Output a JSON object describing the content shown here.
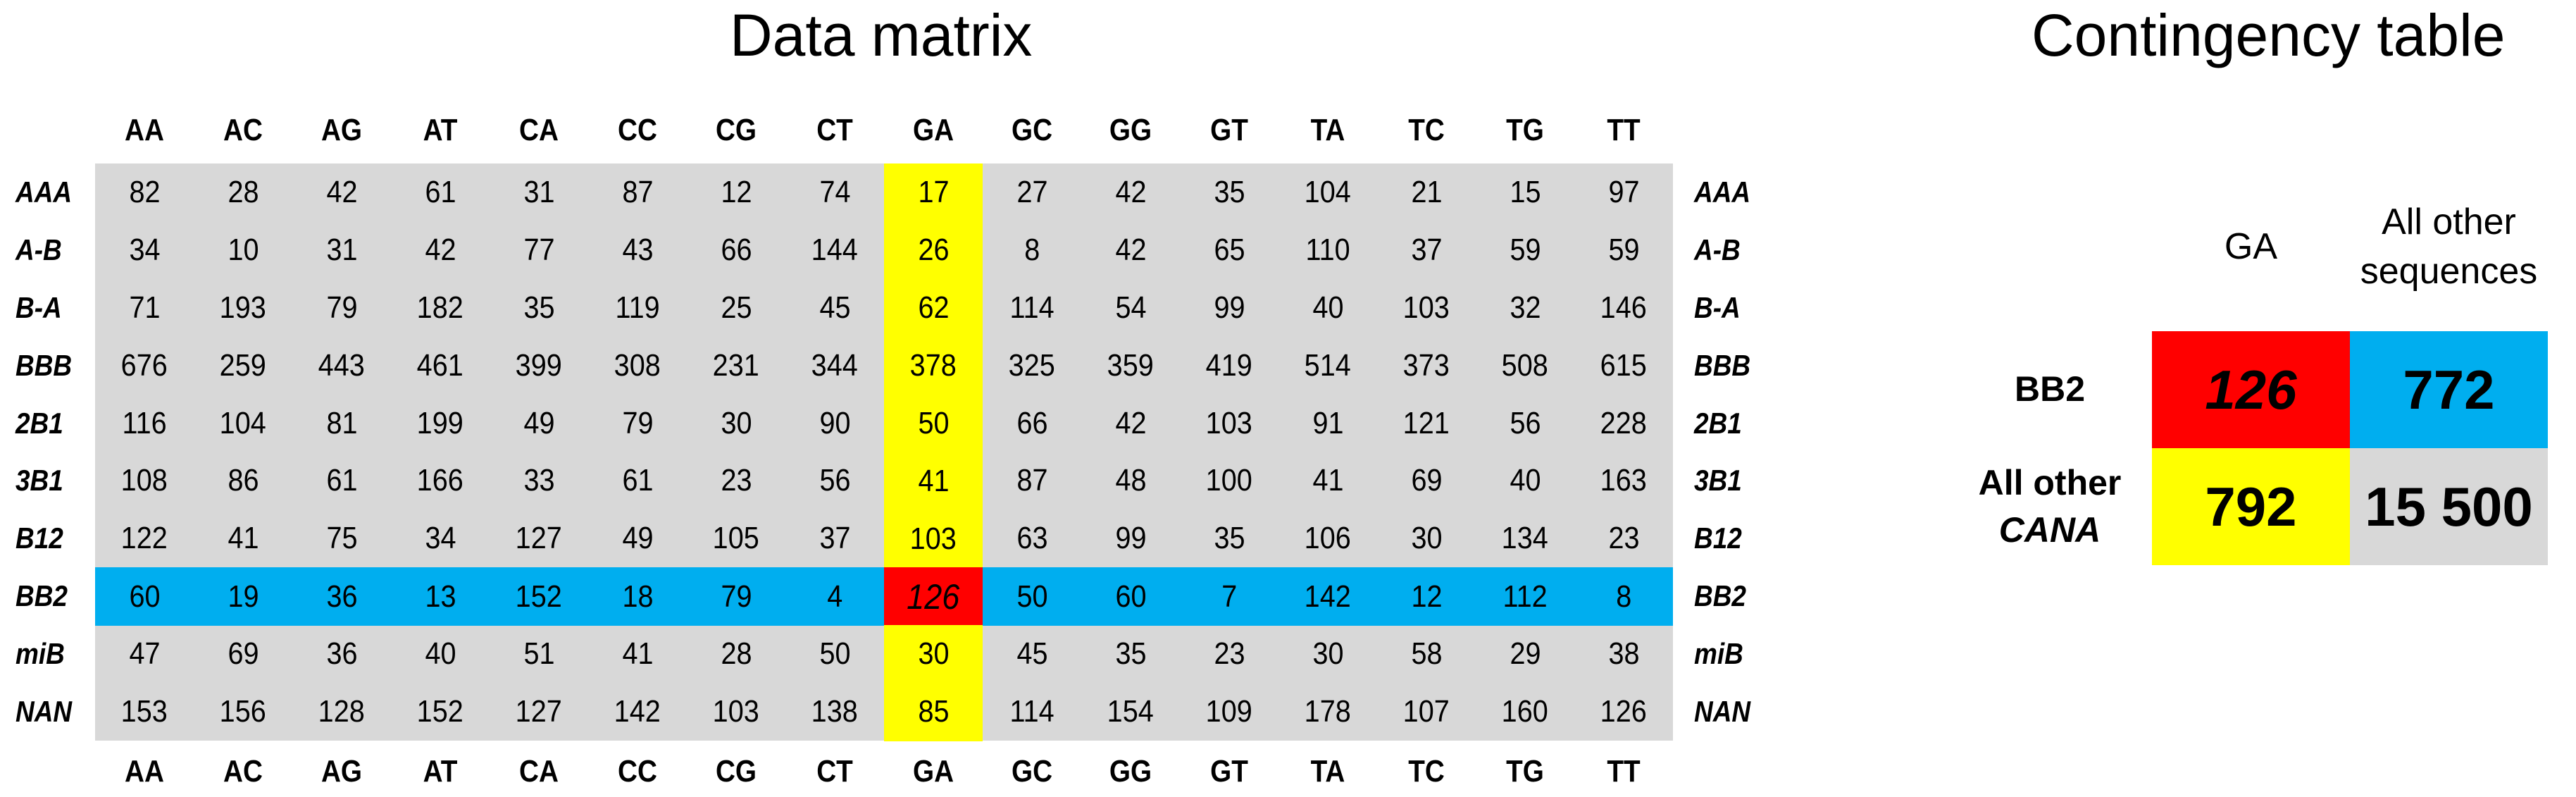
{
  "matrix": {
    "title": "Data matrix",
    "columns": [
      "AA",
      "AC",
      "AG",
      "AT",
      "CA",
      "CC",
      "CG",
      "CT",
      "GA",
      "GC",
      "GG",
      "GT",
      "TA",
      "TC",
      "TG",
      "TT"
    ],
    "rows": [
      {
        "label": "AAA",
        "values": [
          82,
          28,
          42,
          61,
          31,
          87,
          12,
          74,
          17,
          27,
          42,
          35,
          104,
          21,
          15,
          97
        ]
      },
      {
        "label": "A-B",
        "values": [
          34,
          10,
          31,
          42,
          77,
          43,
          66,
          144,
          26,
          8,
          42,
          65,
          110,
          37,
          59,
          59
        ]
      },
      {
        "label": "B-A",
        "values": [
          71,
          193,
          79,
          182,
          35,
          119,
          25,
          45,
          62,
          114,
          54,
          99,
          40,
          103,
          32,
          146
        ]
      },
      {
        "label": "BBB",
        "values": [
          676,
          259,
          443,
          461,
          399,
          308,
          231,
          344,
          378,
          325,
          359,
          419,
          514,
          373,
          508,
          615
        ]
      },
      {
        "label": "2B1",
        "values": [
          116,
          104,
          81,
          199,
          49,
          79,
          30,
          90,
          50,
          66,
          42,
          103,
          91,
          121,
          56,
          228
        ]
      },
      {
        "label": "3B1",
        "values": [
          108,
          86,
          61,
          166,
          33,
          61,
          23,
          56,
          41,
          87,
          48,
          100,
          41,
          69,
          40,
          163
        ]
      },
      {
        "label": "B12",
        "values": [
          122,
          41,
          75,
          34,
          127,
          49,
          105,
          37,
          103,
          63,
          99,
          35,
          106,
          30,
          134,
          23
        ]
      },
      {
        "label": "BB2",
        "values": [
          60,
          19,
          36,
          13,
          152,
          18,
          79,
          4,
          126,
          50,
          60,
          7,
          142,
          12,
          112,
          8
        ]
      },
      {
        "label": "miB",
        "values": [
          47,
          69,
          36,
          40,
          51,
          41,
          28,
          50,
          30,
          45,
          35,
          23,
          30,
          58,
          29,
          38
        ]
      },
      {
        "label": "NAN",
        "values": [
          153,
          156,
          128,
          152,
          127,
          142,
          103,
          138,
          85,
          114,
          154,
          109,
          178,
          107,
          160,
          126
        ]
      }
    ],
    "highlight_column": "GA",
    "highlight_row": "BB2",
    "colors": {
      "background": "#d8d8d8",
      "column": "#ffff00",
      "row": "#00aeef",
      "intersection": "#ff0000"
    }
  },
  "contingency": {
    "title": "Contingency table",
    "col_headers": [
      "GA",
      "All other sequences"
    ],
    "col_header_lines": [
      [
        "GA"
      ],
      [
        "All other",
        "sequences"
      ]
    ],
    "row_headers": [
      [
        "BB2"
      ],
      [
        "All other",
        "CANA"
      ]
    ],
    "cells": [
      [
        "126",
        "772"
      ],
      [
        "792",
        "15 500"
      ]
    ],
    "colors": [
      [
        "#ff0000",
        "#00aeef"
      ],
      [
        "#ffff00",
        "#d8d8d8"
      ]
    ]
  }
}
